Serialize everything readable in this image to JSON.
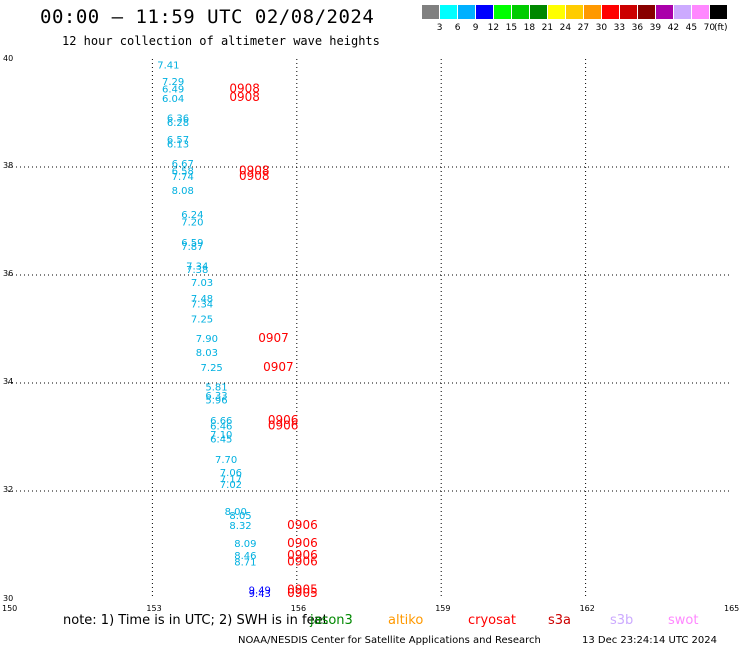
{
  "header": {
    "title": "00:00 – 11:59 UTC 02/08/2024",
    "subtitle": "12 hour collection of altimeter wave heights"
  },
  "legend": {
    "unit": "(ft)",
    "bins": [
      {
        "label": "3",
        "color": "#808080"
      },
      {
        "label": "6",
        "color": "#00ffff"
      },
      {
        "label": "9",
        "color": "#00b0ff"
      },
      {
        "label": "12",
        "color": "#0000ff"
      },
      {
        "label": "15",
        "color": "#00ff00"
      },
      {
        "label": "18",
        "color": "#00cc00"
      },
      {
        "label": "21",
        "color": "#008800"
      },
      {
        "label": "24",
        "color": "#ffff00"
      },
      {
        "label": "27",
        "color": "#ffcc00"
      },
      {
        "label": "30",
        "color": "#ff9900"
      },
      {
        "label": "33",
        "color": "#ff0000"
      },
      {
        "label": "36",
        "color": "#cc0000"
      },
      {
        "label": "39",
        "color": "#880000"
      },
      {
        "label": "42",
        "color": "#aa00aa"
      },
      {
        "label": "45",
        "color": "#ccaaff"
      },
      {
        "label": "70",
        "color": "#ff88ff"
      },
      {
        "label": "",
        "color": "#000000"
      }
    ]
  },
  "axes": {
    "lon_ticks": [
      "150",
      "153",
      "156",
      "159",
      "162",
      "165"
    ],
    "lat_ticks": [
      "40",
      "38",
      "36",
      "34",
      "32",
      "30"
    ],
    "lon_range": [
      150,
      165
    ],
    "lat_range": [
      30,
      40
    ]
  },
  "colors": {
    "wave_text": "#00b0e0",
    "pass_time": "#ff0000",
    "blue_text": "#0000ff",
    "grid": "#000000"
  },
  "wave_heights": [
    {
      "v": "7.41",
      "lon": 153.1,
      "lat": 39.82
    },
    {
      "v": "7.29",
      "lon": 153.2,
      "lat": 39.52
    },
    {
      "v": "6.49",
      "lon": 153.2,
      "lat": 39.38
    },
    {
      "v": "6.04",
      "lon": 153.2,
      "lat": 39.2
    },
    {
      "v": "6.36",
      "lon": 153.3,
      "lat": 38.84
    },
    {
      "v": "6.28",
      "lon": 153.3,
      "lat": 38.76
    },
    {
      "v": "6.57",
      "lon": 153.3,
      "lat": 38.44
    },
    {
      "v": "6.13",
      "lon": 153.3,
      "lat": 38.36
    },
    {
      "v": "6.67",
      "lon": 153.4,
      "lat": 38.0
    },
    {
      "v": "6.58",
      "lon": 153.4,
      "lat": 37.86
    },
    {
      "v": "7.74",
      "lon": 153.4,
      "lat": 37.76
    },
    {
      "v": "8.08",
      "lon": 153.4,
      "lat": 37.5
    },
    {
      "v": "6.24",
      "lon": 153.6,
      "lat": 37.06
    },
    {
      "v": "7.20",
      "lon": 153.6,
      "lat": 36.92
    },
    {
      "v": "6.59",
      "lon": 153.6,
      "lat": 36.54
    },
    {
      "v": "7.87",
      "lon": 153.6,
      "lat": 36.46
    },
    {
      "v": "7.34",
      "lon": 153.7,
      "lat": 36.1
    },
    {
      "v": "7.38",
      "lon": 153.7,
      "lat": 36.04
    },
    {
      "v": "7.03",
      "lon": 153.8,
      "lat": 35.8
    },
    {
      "v": "7.48",
      "lon": 153.8,
      "lat": 35.5
    },
    {
      "v": "7.34",
      "lon": 153.8,
      "lat": 35.4
    },
    {
      "v": "7.25",
      "lon": 153.8,
      "lat": 35.12
    },
    {
      "v": "7.90",
      "lon": 153.9,
      "lat": 34.76
    },
    {
      "v": "8.03",
      "lon": 153.9,
      "lat": 34.5
    },
    {
      "v": "7.25",
      "lon": 154.0,
      "lat": 34.22
    },
    {
      "v": "5.81",
      "lon": 154.1,
      "lat": 33.86
    },
    {
      "v": "6.33",
      "lon": 154.1,
      "lat": 33.7
    },
    {
      "v": "5.96",
      "lon": 154.1,
      "lat": 33.62
    },
    {
      "v": "6.66",
      "lon": 154.2,
      "lat": 33.24
    },
    {
      "v": "6.46",
      "lon": 154.2,
      "lat": 33.14
    },
    {
      "v": "7.10",
      "lon": 154.2,
      "lat": 32.98
    },
    {
      "v": "6.45",
      "lon": 154.2,
      "lat": 32.9
    },
    {
      "v": "7.70",
      "lon": 154.3,
      "lat": 32.52
    },
    {
      "v": "7.06",
      "lon": 154.4,
      "lat": 32.28
    },
    {
      "v": "7.17",
      "lon": 154.4,
      "lat": 32.16
    },
    {
      "v": "7.02",
      "lon": 154.4,
      "lat": 32.06
    },
    {
      "v": "8.00",
      "lon": 154.5,
      "lat": 31.56
    },
    {
      "v": "8.05",
      "lon": 154.6,
      "lat": 31.48
    },
    {
      "v": "8.32",
      "lon": 154.6,
      "lat": 31.3
    },
    {
      "v": "8.09",
      "lon": 154.7,
      "lat": 30.96
    },
    {
      "v": "8.46",
      "lon": 154.7,
      "lat": 30.74
    },
    {
      "v": "8.71",
      "lon": 154.7,
      "lat": 30.62
    }
  ],
  "blue_heights": [
    {
      "v": "9.49",
      "lon": 155.0,
      "lat": 30.1
    },
    {
      "v": "9.43",
      "lon": 155.0,
      "lat": 30.04
    }
  ],
  "pass_times": [
    {
      "v": "0908",
      "lon": 154.6,
      "lat": 39.38
    },
    {
      "v": "0908",
      "lon": 154.6,
      "lat": 39.22
    },
    {
      "v": "0908",
      "lon": 154.8,
      "lat": 37.86
    },
    {
      "v": "0908",
      "lon": 154.8,
      "lat": 37.76
    },
    {
      "v": "0907",
      "lon": 155.2,
      "lat": 34.76
    },
    {
      "v": "0907",
      "lon": 155.3,
      "lat": 34.22
    },
    {
      "v": "0906",
      "lon": 155.4,
      "lat": 33.24
    },
    {
      "v": "0906",
      "lon": 155.4,
      "lat": 33.14
    },
    {
      "v": "0906",
      "lon": 155.8,
      "lat": 31.3
    },
    {
      "v": "0906",
      "lon": 155.8,
      "lat": 30.96
    },
    {
      "v": "0906",
      "lon": 155.8,
      "lat": 30.74
    },
    {
      "v": "0906",
      "lon": 155.8,
      "lat": 30.62
    },
    {
      "v": "0905",
      "lon": 155.8,
      "lat": 30.1
    },
    {
      "v": "0905",
      "lon": 155.8,
      "lat": 30.04
    }
  ],
  "footer": {
    "note": "note:  1) Time is in UTC;  2) SWH is in feet",
    "satellites": [
      {
        "name": "jason3",
        "color": "#008800"
      },
      {
        "name": "altiko",
        "color": "#ff9900"
      },
      {
        "name": "cryosat",
        "color": "#ff0000"
      },
      {
        "name": "s3a",
        "color": "#cc0000"
      },
      {
        "name": "s3b",
        "color": "#ccaaff"
      },
      {
        "name": "swot",
        "color": "#ff88ff"
      }
    ],
    "credit": "NOAA/NESDIS Center for Satellite Applications and Research",
    "timestamp": "13 Dec 23:24:14 UTC 2024"
  }
}
